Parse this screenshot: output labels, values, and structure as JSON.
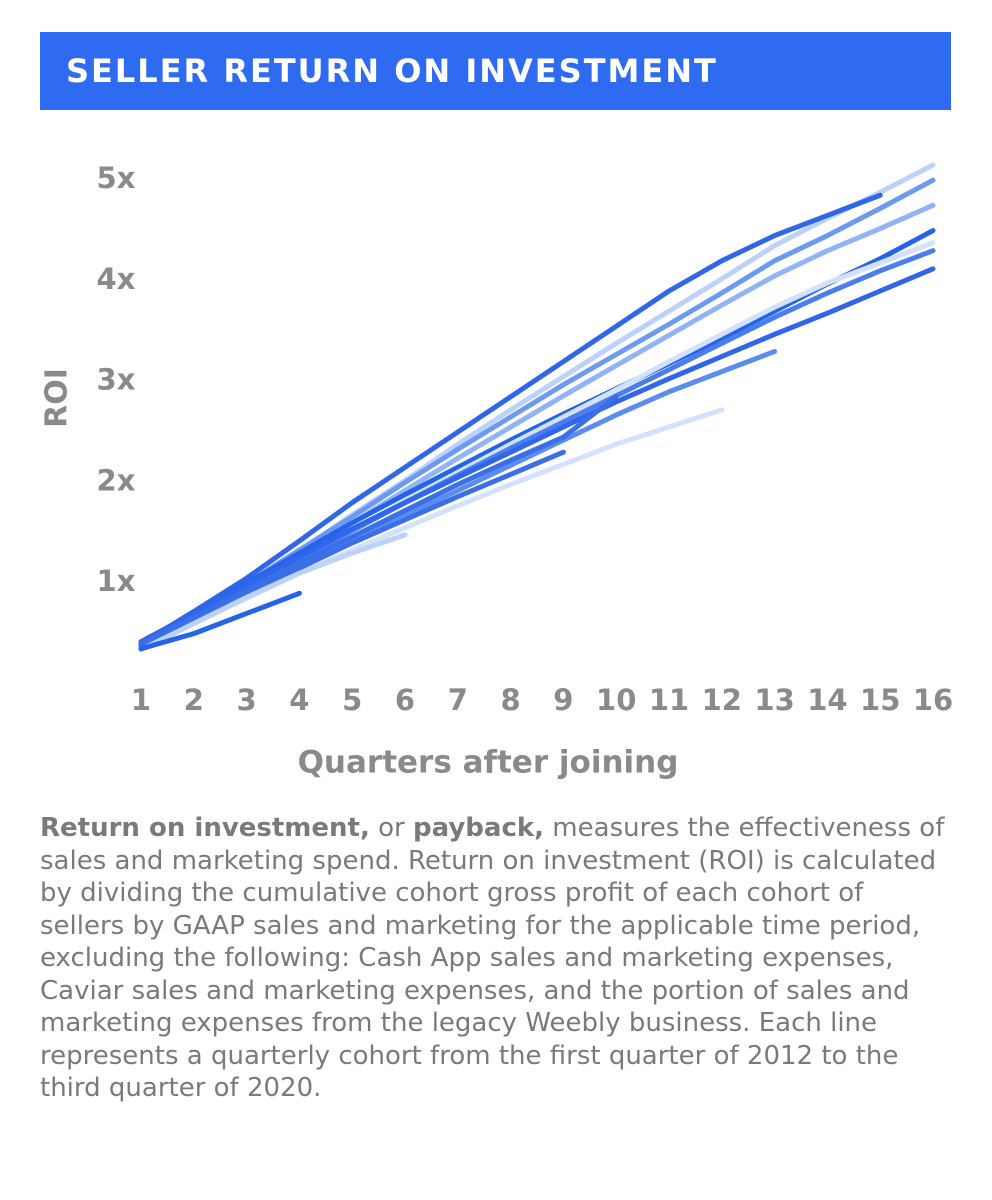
{
  "chart_data": {
    "type": "line",
    "title": "SELLER RETURN ON INVESTMENT",
    "ylabel": "ROI",
    "xlabel": "Quarters after joining",
    "x": [
      1,
      2,
      3,
      4,
      5,
      6,
      7,
      8,
      9,
      10,
      11,
      12,
      13,
      14,
      15,
      16
    ],
    "xlim": [
      1,
      16
    ],
    "xticks": [
      1,
      2,
      3,
      4,
      5,
      6,
      7,
      8,
      9,
      10,
      11,
      12,
      13,
      14,
      15,
      16
    ],
    "ylim": [
      0,
      5.2
    ],
    "yticks": [
      {
        "value": 1,
        "label": "1x"
      },
      {
        "value": 2,
        "label": "2x"
      },
      {
        "value": 3,
        "label": "3x"
      },
      {
        "value": 4,
        "label": "4x"
      },
      {
        "value": 5,
        "label": "5x"
      }
    ],
    "grid": false,
    "series": [
      {
        "color": "#bcd2fa",
        "values": [
          0.35,
          0.65,
          0.98,
          1.32,
          1.68,
          2.02,
          2.38,
          2.72,
          3.05,
          3.38,
          3.7,
          4.02,
          4.35,
          4.62,
          4.88,
          5.15
        ]
      },
      {
        "color": "#6b9af0",
        "values": [
          0.38,
          0.68,
          1.0,
          1.33,
          1.66,
          2.0,
          2.33,
          2.65,
          2.97,
          3.27,
          3.57,
          3.88,
          4.2,
          4.45,
          4.72,
          5.0
        ]
      },
      {
        "color": "#90b4f5",
        "values": [
          0.36,
          0.66,
          0.97,
          1.29,
          1.6,
          1.92,
          2.24,
          2.55,
          2.86,
          3.16,
          3.46,
          3.76,
          4.05,
          4.3,
          4.52,
          4.75
        ]
      },
      {
        "color": "#2f66ea",
        "values": [
          0.4,
          0.72,
          1.05,
          1.42,
          1.8,
          2.15,
          2.5,
          2.85,
          3.2,
          3.55,
          3.9,
          4.2,
          4.45,
          4.65,
          4.85,
          null
        ]
      },
      {
        "color": "#2563eb",
        "values": [
          0.4,
          0.7,
          1.0,
          1.3,
          1.6,
          1.88,
          2.15,
          2.42,
          2.68,
          2.93,
          3.18,
          3.43,
          3.7,
          3.97,
          4.22,
          4.5
        ]
      },
      {
        "color": "#d3e2fc",
        "values": [
          0.34,
          0.62,
          0.92,
          1.22,
          1.52,
          1.82,
          2.1,
          2.38,
          2.65,
          2.92,
          3.2,
          3.47,
          3.74,
          3.98,
          4.18,
          4.38
        ]
      },
      {
        "color": "#4a7eee",
        "values": [
          0.37,
          0.66,
          0.95,
          1.24,
          1.52,
          1.8,
          2.07,
          2.34,
          2.6,
          2.86,
          3.12,
          3.38,
          3.64,
          3.88,
          4.1,
          4.3
        ]
      },
      {
        "color": "#2f66ea",
        "values": [
          0.42,
          0.7,
          0.98,
          1.26,
          1.54,
          1.8,
          2.05,
          2.3,
          2.55,
          2.8,
          3.03,
          3.25,
          3.47,
          3.68,
          3.9,
          4.12
        ]
      },
      {
        "color": "#5b8cef",
        "values": [
          0.38,
          0.64,
          0.9,
          1.16,
          1.42,
          1.67,
          1.92,
          2.17,
          2.42,
          2.67,
          2.9,
          3.1,
          3.3,
          null,
          null,
          null
        ]
      },
      {
        "color": "#d3e2fc",
        "values": [
          0.35,
          0.6,
          0.85,
          1.1,
          1.33,
          1.55,
          1.77,
          1.98,
          2.18,
          2.38,
          2.55,
          2.72,
          null,
          null,
          null,
          null
        ]
      },
      {
        "color": "#3b6fe8",
        "values": [
          0.4,
          0.66,
          0.93,
          1.2,
          1.46,
          1.72,
          1.98,
          2.22,
          2.45,
          2.85,
          null,
          null,
          null,
          null,
          null,
          null
        ]
      },
      {
        "color": "#3b6fe8",
        "values": [
          0.38,
          0.64,
          0.9,
          1.15,
          1.4,
          1.63,
          1.86,
          2.08,
          2.3,
          null,
          null,
          null,
          null,
          null,
          null,
          null
        ]
      },
      {
        "color": "#bcd2fa",
        "values": [
          0.34,
          0.6,
          0.86,
          1.1,
          1.3,
          1.48,
          null,
          null,
          null,
          null,
          null,
          null,
          null,
          null,
          null,
          null
        ]
      },
      {
        "color": "#2563eb",
        "values": [
          0.35,
          0.5,
          0.7,
          0.9,
          null,
          null,
          null,
          null,
          null,
          null,
          null,
          null,
          null,
          null,
          null,
          null
        ]
      }
    ],
    "caption": [
      "Return on investment,",
      " or ",
      "payback,",
      " measures the effectiveness of sales and marketing spend. Return on investment (ROI) is calculated by dividing the cumulative cohort gross profit of each cohort of sellers by GAAP sales and marketing for the applicable time period, excluding the following: Cash App sales and marketing expenses, Caviar sales and marketing expenses, and the portion of sales and marketing expenses from the legacy Weebly business. Each line represents a quarterly cohort from the first quarter of 2012 to the third quarter of 2020."
    ]
  }
}
